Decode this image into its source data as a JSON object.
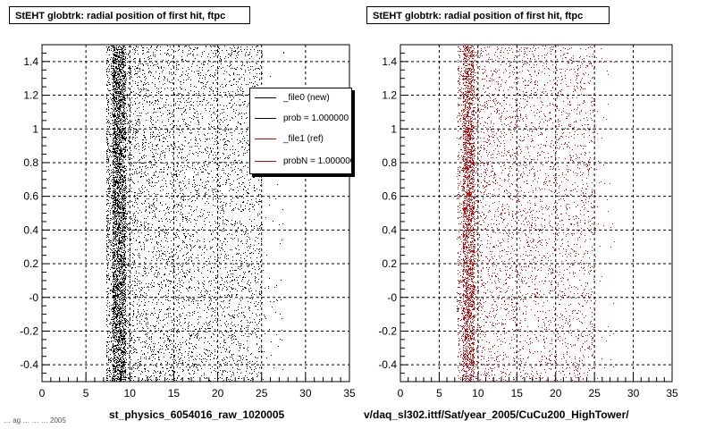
{
  "footer_text": "… ag … … … 2005",
  "chart_data": [
    {
      "type": "scatter",
      "title": "StEHT globtrk: radial position of first hit, ftpc",
      "xlabel": "st_physics_6054016_raw_1020005",
      "ylabel": "",
      "xlim": [
        0,
        35
      ],
      "ylim": [
        -0.5,
        1.5
      ],
      "x_ticks": [
        "0",
        "5",
        "10",
        "15",
        "20",
        "25",
        "30",
        "35"
      ],
      "y_ticks": [
        "-0.4",
        "-0.2",
        "-0",
        "0.2",
        "0.4",
        "0.6",
        "0.8",
        "1",
        "1.2",
        "1.4"
      ],
      "grid": true,
      "marker_color": "#000000",
      "distribution": {
        "x_min": 7.3,
        "x_dense_band": [
          8,
          9.5
        ],
        "x_fade_end": 25,
        "stray_x_max": 27.5,
        "y_range": [
          -0.5,
          1.5
        ],
        "approx_points": 9000
      },
      "legend": {
        "position": "top-right",
        "entries": [
          {
            "label": "_file0 (new)",
            "color": "#000000"
          },
          {
            "label": "prob = 1.000000",
            "color": "#000000"
          },
          {
            "label": "_file1 (ref)",
            "color": "#cc0000"
          },
          {
            "label": "probN = 1.000000",
            "color": "#cc0000"
          }
        ]
      }
    },
    {
      "type": "scatter",
      "title": "StEHT globtrk: radial position of first hit, ftpc",
      "xlabel": "v/daq_sl302.ittf/Sat/year_2005/CuCu200_HighTower/",
      "ylabel": "",
      "xlim": [
        0,
        35
      ],
      "ylim": [
        -0.5,
        1.5
      ],
      "x_ticks": [
        "0",
        "5",
        "10",
        "15",
        "20",
        "25",
        "30",
        "35"
      ],
      "y_ticks": [
        "-0.4",
        "-0.2",
        "-0",
        "0.2",
        "0.4",
        "0.6",
        "0.8",
        "1",
        "1.2",
        "1.4"
      ],
      "grid": true,
      "marker_color": "#cc0000",
      "distribution": {
        "x_min": 7.3,
        "x_dense_band": [
          8,
          9.5
        ],
        "x_fade_end": 25,
        "stray_x_max": 27.5,
        "y_range": [
          -0.5,
          1.5
        ],
        "approx_points": 6000
      }
    }
  ]
}
